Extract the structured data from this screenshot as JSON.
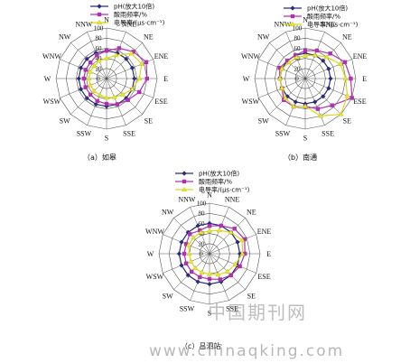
{
  "directions": [
    "N",
    "NNE",
    "NE",
    "ENE",
    "E",
    "ESE",
    "SE",
    "SSE",
    "S",
    "SSW",
    "SW",
    "WSW",
    "W",
    "WNW",
    "NW",
    "NNW"
  ],
  "ticks": [
    "0",
    "20",
    "40",
    "60",
    "80",
    "100"
  ],
  "legend": [
    "pH(放大10倍)",
    "酸雨频率/%",
    "电导率/(μs·cm⁻¹)"
  ],
  "colors": {
    "ph": "#2a2a7a",
    "acid": "#b030b0",
    "cond": "#e8e830"
  },
  "watermark": {
    "text": "中国期刊网",
    "url": "www.chinaqking.com"
  },
  "chart_data": [
    {
      "type": "radar",
      "caption": "（a）如皋",
      "categories": [
        "N",
        "NNE",
        "NE",
        "ENE",
        "E",
        "ESE",
        "SE",
        "SSE",
        "S",
        "SSW",
        "SW",
        "WSW",
        "W",
        "WNW",
        "NW",
        "NNW"
      ],
      "rlim": [
        0,
        100
      ],
      "series": [
        {
          "name": "pH(放大10倍)",
          "values": [
            55,
            55,
            55,
            55,
            55,
            55,
            55,
            55,
            55,
            55,
            55,
            55,
            55,
            55,
            55,
            55
          ]
        },
        {
          "name": "酸雨频率/%",
          "values": [
            55,
            65,
            75,
            85,
            80,
            70,
            60,
            55,
            50,
            48,
            45,
            45,
            45,
            45,
            45,
            50
          ]
        },
        {
          "name": "电导率/(μs·cm⁻¹)",
          "values": [
            40,
            50,
            70,
            75,
            65,
            55,
            45,
            40,
            38,
            35,
            35,
            35,
            35,
            35,
            35,
            38
          ]
        }
      ]
    },
    {
      "type": "radar",
      "caption": "（b）南通",
      "categories": [
        "N",
        "NNE",
        "NE",
        "ENE",
        "E",
        "ESE",
        "SE",
        "SSE",
        "S",
        "SSW",
        "SW",
        "WSW",
        "W",
        "WNW",
        "NW",
        "NNW"
      ],
      "rlim": [
        0,
        100
      ],
      "series": [
        {
          "name": "pH(放大10倍)",
          "values": [
            50,
            50,
            50,
            50,
            50,
            50,
            50,
            50,
            50,
            50,
            50,
            50,
            50,
            50,
            50,
            50
          ]
        },
        {
          "name": "酸雨频率/%",
          "values": [
            55,
            60,
            70,
            85,
            90,
            100,
            75,
            65,
            55,
            60,
            60,
            50,
            50,
            55,
            50,
            50
          ]
        },
        {
          "name": "电导率/(μs·cm⁻¹)",
          "values": [
            45,
            50,
            60,
            75,
            80,
            90,
            100,
            80,
            55,
            60,
            55,
            50,
            50,
            50,
            45,
            45
          ]
        }
      ]
    },
    {
      "type": "radar",
      "caption": "（c）吕泗站",
      "categories": [
        "N",
        "NNE",
        "NE",
        "ENE",
        "E",
        "ESE",
        "SE",
        "SSE",
        "S",
        "SSW",
        "SW",
        "WSW",
        "W",
        "WNW",
        "NW",
        "NNW"
      ],
      "rlim": [
        0,
        100
      ],
      "series": [
        {
          "name": "pH(放大10倍)",
          "values": [
            60,
            60,
            60,
            60,
            60,
            60,
            60,
            60,
            60,
            60,
            60,
            60,
            60,
            60,
            60,
            60
          ]
        },
        {
          "name": "酸雨频率/%",
          "values": [
            55,
            60,
            70,
            75,
            70,
            65,
            60,
            55,
            50,
            50,
            50,
            50,
            50,
            50,
            55,
            50
          ]
        },
        {
          "name": "电导率/(μs·cm⁻¹)",
          "values": [
            45,
            50,
            60,
            70,
            65,
            55,
            50,
            45,
            40,
            40,
            40,
            40,
            40,
            45,
            45,
            45
          ]
        }
      ]
    }
  ]
}
